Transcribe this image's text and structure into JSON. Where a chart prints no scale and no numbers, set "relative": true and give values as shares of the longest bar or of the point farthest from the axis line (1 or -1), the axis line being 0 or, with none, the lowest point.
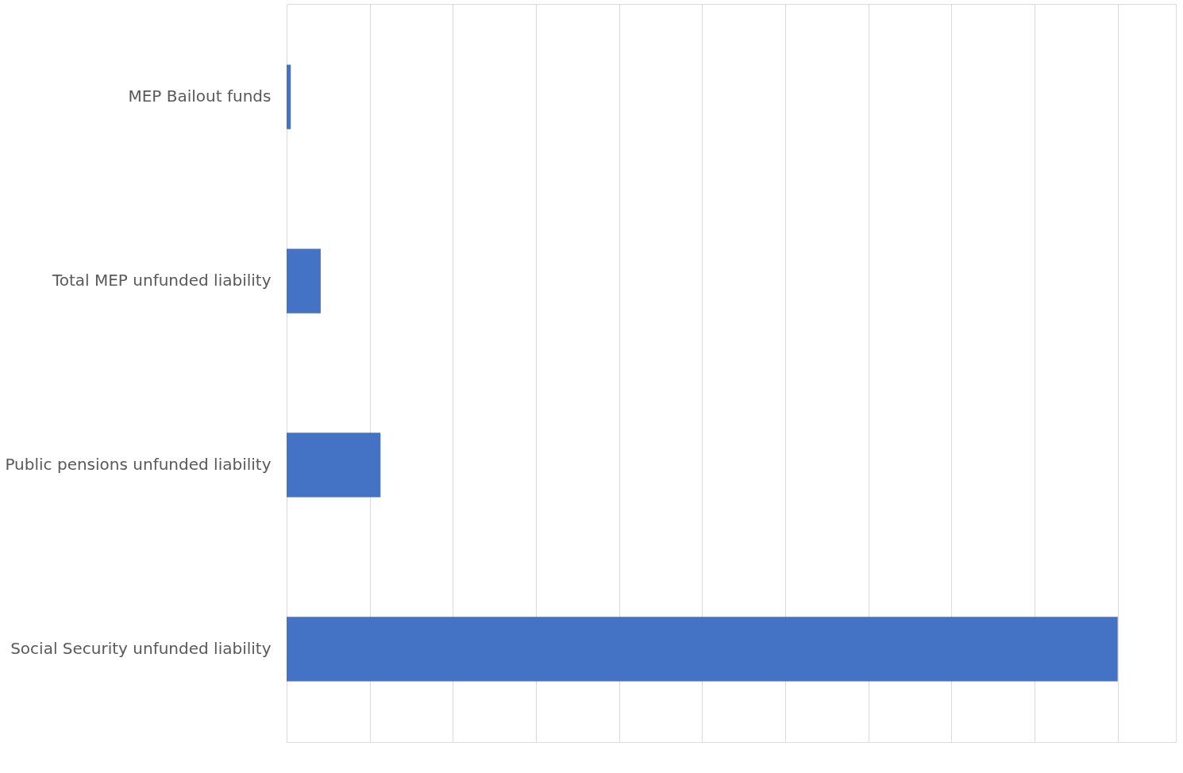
{
  "chart_data": {
    "type": "bar",
    "orientation": "horizontal",
    "relative": true,
    "grid": "x",
    "categories": [
      "MEP Bailout funds",
      "Total MEP unfunded liability",
      "Public pensions unfunded liability",
      "Social Security unfunded liability"
    ],
    "values": [
      0.005,
      0.041,
      0.113,
      1
    ],
    "color": "#4472c4"
  }
}
